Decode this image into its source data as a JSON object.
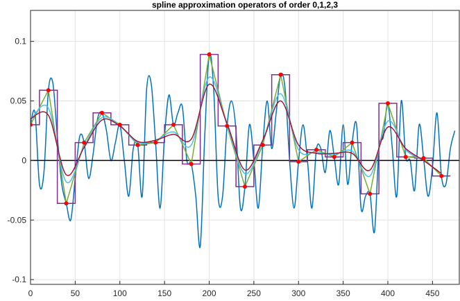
{
  "chart_data": {
    "type": "line",
    "title": "spline approximation operators of order 0,1,2,3",
    "xlim": [
      0,
      480
    ],
    "ylim": [
      -0.104,
      0.126
    ],
    "xticks": [
      0,
      50,
      100,
      150,
      200,
      250,
      300,
      350,
      400,
      450
    ],
    "yticks": [
      -0.1,
      -0.05,
      0,
      0.05,
      0.1
    ],
    "grid": true,
    "hline": 0,
    "series": [
      {
        "color": "#0072bd",
        "style": "smooth",
        "x": [
          0,
          5,
          10,
          15,
          20,
          25,
          30,
          35,
          40,
          45,
          50,
          55,
          60,
          65,
          70,
          75,
          80,
          85,
          90,
          95,
          100,
          105,
          110,
          115,
          120,
          125,
          130,
          135,
          140,
          145,
          150,
          155,
          160,
          165,
          170,
          175,
          180,
          185,
          190,
          195,
          200,
          205,
          210,
          215,
          220,
          225,
          230,
          235,
          240,
          245,
          250,
          255,
          260,
          265,
          270,
          275,
          280,
          285,
          290,
          295,
          300,
          305,
          310,
          315,
          320,
          325,
          330,
          335,
          340,
          345,
          350,
          355,
          360,
          365,
          370,
          375,
          380,
          385,
          390,
          395,
          400,
          405,
          410,
          415,
          420,
          425,
          430,
          435,
          440,
          445,
          450,
          455,
          460,
          465,
          470,
          475
        ],
        "values": [
          0.03,
          0.04,
          -0.02,
          -0.01,
          0.059,
          0.065,
          0.02,
          -0.02,
          -0.036,
          -0.05,
          -0.015,
          0.02,
          0.015,
          -0.015,
          0.005,
          0.035,
          0.04,
          0.025,
          0.0,
          0.015,
          0.03,
          0.0,
          -0.03,
          0.01,
          0.013,
          -0.03,
          0.06,
          0.065,
          0.015,
          -0.04,
          0.02,
          0.055,
          0.03,
          0.04,
          0.045,
          0.0,
          -0.003,
          -0.03,
          -0.072,
          0.02,
          0.089,
          0.06,
          -0.03,
          -0.03,
          0.029,
          0.05,
          0.025,
          -0.04,
          -0.022,
          0.03,
          0.0,
          -0.04,
          0.013,
          0.05,
          0.01,
          0.04,
          0.072,
          0.06,
          0.0,
          -0.04,
          -0.001,
          0.03,
          0.0,
          -0.04,
          0.009,
          0.01,
          -0.01,
          0.025,
          0.003,
          -0.02,
          0.03,
          -0.02,
          0.015,
          0.03,
          -0.04,
          -0.03,
          -0.028,
          -0.06,
          0.01,
          0.02,
          0.048,
          0.01,
          -0.03,
          0.05,
          0.003,
          0.0,
          -0.025,
          0.03,
          0.002,
          -0.03,
          -0.005,
          0.04,
          -0.013,
          -0.02,
          0.01,
          0.025
        ]
      },
      {
        "color": "#7e2f8e",
        "style": "step",
        "x": [
          0,
          20,
          40,
          60,
          80,
          100,
          120,
          140,
          160,
          180,
          200,
          220,
          240,
          260,
          280,
          300,
          320,
          340,
          360,
          380,
          400,
          420,
          440,
          460
        ],
        "values": [
          0.03,
          0.059,
          -0.036,
          0.015,
          0.04,
          0.03,
          0.013,
          0.015,
          0.03,
          -0.003,
          0.089,
          0.029,
          -0.022,
          0.013,
          0.072,
          -0.001,
          0.009,
          0.003,
          0.015,
          -0.028,
          0.048,
          0.003,
          0.002,
          -0.013
        ]
      },
      {
        "color": "#77ac30",
        "style": "linear",
        "x": [
          0,
          20,
          40,
          60,
          80,
          100,
          120,
          140,
          160,
          180,
          200,
          220,
          240,
          260,
          280,
          300,
          320,
          340,
          360,
          380,
          400,
          420,
          440,
          460
        ],
        "values": [
          0.03,
          0.059,
          -0.036,
          0.015,
          0.04,
          0.03,
          0.013,
          0.015,
          0.03,
          -0.003,
          0.089,
          0.029,
          -0.022,
          0.013,
          0.072,
          -0.001,
          0.009,
          0.003,
          0.015,
          -0.028,
          0.048,
          0.003,
          0.002,
          -0.013
        ]
      },
      {
        "color": "#4dbeee",
        "style": "smooth",
        "x": [
          0,
          20,
          40,
          60,
          80,
          100,
          120,
          140,
          160,
          180,
          200,
          220,
          240,
          260,
          280,
          300,
          320,
          340,
          360,
          380,
          400,
          420,
          440,
          460
        ],
        "values": [
          0.034,
          0.044,
          -0.018,
          0.012,
          0.036,
          0.029,
          0.015,
          0.017,
          0.024,
          0.013,
          0.07,
          0.03,
          -0.011,
          0.016,
          0.056,
          0.009,
          0.007,
          0.005,
          0.008,
          -0.013,
          0.033,
          0.009,
          0.0,
          -0.011
        ]
      },
      {
        "color": "#a2142f",
        "style": "smooth",
        "x": [
          0,
          20,
          40,
          60,
          80,
          100,
          120,
          140,
          160,
          180,
          200,
          220,
          240,
          260,
          280,
          300,
          320,
          340,
          360,
          380,
          400,
          420,
          440,
          460
        ],
        "values": [
          0.035,
          0.038,
          -0.012,
          0.011,
          0.034,
          0.029,
          0.016,
          0.017,
          0.022,
          0.018,
          0.064,
          0.031,
          -0.008,
          0.017,
          0.05,
          0.013,
          0.006,
          0.006,
          0.006,
          -0.008,
          0.028,
          0.01,
          0.0,
          -0.011
        ]
      },
      {
        "color": "#ff0000",
        "style": "markers",
        "x": [
          0,
          20,
          40,
          60,
          80,
          100,
          120,
          140,
          160,
          180,
          200,
          220,
          240,
          260,
          280,
          300,
          320,
          340,
          360,
          380,
          400,
          420,
          440,
          460
        ],
        "values": [
          0.03,
          0.059,
          -0.036,
          0.015,
          0.04,
          0.03,
          0.013,
          0.015,
          0.03,
          -0.003,
          0.089,
          0.029,
          -0.022,
          0.013,
          0.072,
          -0.001,
          0.009,
          0.003,
          0.015,
          -0.028,
          0.048,
          0.003,
          0.002,
          -0.013
        ]
      }
    ]
  }
}
